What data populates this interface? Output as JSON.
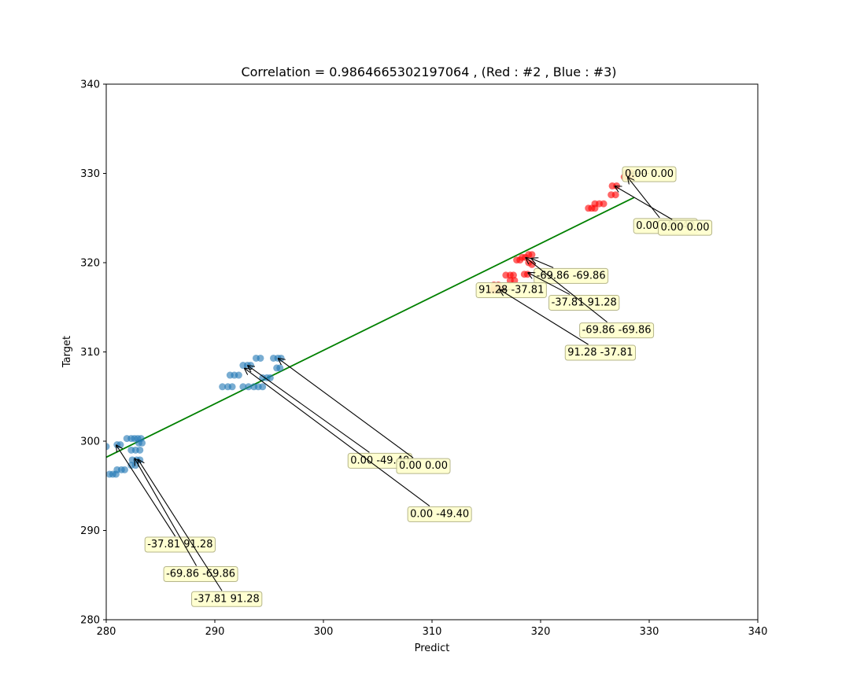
{
  "chart_data": {
    "type": "scatter",
    "title": "Correlation = 0.9864665302197064 ,  (Red : #2 , Blue : #3)",
    "xlabel": "Predict",
    "ylabel": "Target",
    "xlim": [
      280,
      340
    ],
    "ylim": [
      280,
      340
    ],
    "xticks": [
      280,
      290,
      300,
      310,
      320,
      330,
      340
    ],
    "yticks": [
      280,
      290,
      300,
      310,
      320,
      330,
      340
    ],
    "grid": false,
    "colors": {
      "blue": "#1f77b4",
      "red": "#ff0000",
      "fit_line": "#008000",
      "annotation_box": "#ffffcc",
      "annotation_edge": "#b5b58a"
    },
    "series": [
      {
        "color": "blue",
        "points": [
          [
            280.0,
            299.4
          ],
          [
            280.3,
            296.3
          ],
          [
            280.6,
            296.3
          ],
          [
            280.9,
            296.3
          ],
          [
            281.0,
            299.6
          ],
          [
            281.3,
            299.6
          ],
          [
            281.0,
            296.8
          ],
          [
            281.4,
            296.8
          ],
          [
            281.7,
            296.8
          ],
          [
            281.9,
            300.3
          ],
          [
            282.3,
            300.3
          ],
          [
            282.6,
            300.3
          ],
          [
            282.9,
            300.3
          ],
          [
            283.2,
            300.3
          ],
          [
            282.3,
            299.0
          ],
          [
            282.7,
            299.0
          ],
          [
            283.1,
            299.0
          ],
          [
            282.4,
            297.9
          ],
          [
            282.8,
            297.9
          ],
          [
            283.1,
            297.9
          ],
          [
            282.3,
            297.3
          ],
          [
            282.7,
            297.3
          ],
          [
            283.0,
            299.8
          ],
          [
            283.3,
            299.8
          ],
          [
            290.7,
            306.1
          ],
          [
            291.2,
            306.1
          ],
          [
            291.6,
            306.1
          ],
          [
            291.4,
            307.4
          ],
          [
            291.8,
            307.4
          ],
          [
            292.2,
            307.4
          ],
          [
            292.6,
            308.5
          ],
          [
            293.0,
            308.5
          ],
          [
            293.3,
            308.5
          ],
          [
            292.6,
            306.1
          ],
          [
            293.1,
            306.1
          ],
          [
            293.6,
            306.1
          ],
          [
            294.0,
            306.1
          ],
          [
            294.4,
            306.1
          ],
          [
            293.8,
            309.3
          ],
          [
            294.2,
            309.3
          ],
          [
            294.4,
            307.1
          ],
          [
            294.8,
            307.1
          ],
          [
            295.1,
            307.1
          ],
          [
            295.4,
            309.3
          ],
          [
            295.8,
            309.3
          ],
          [
            296.1,
            309.3
          ],
          [
            295.7,
            308.2
          ],
          [
            296.0,
            308.2
          ]
        ]
      },
      {
        "color": "red",
        "points": [
          [
            315.4,
            316.9
          ],
          [
            315.7,
            316.9
          ],
          [
            316.0,
            316.9
          ],
          [
            316.3,
            316.9
          ],
          [
            315.7,
            317.5
          ],
          [
            316.1,
            317.5
          ],
          [
            316.2,
            317.1
          ],
          [
            316.5,
            317.1
          ],
          [
            316.8,
            318.6
          ],
          [
            317.2,
            318.6
          ],
          [
            317.5,
            318.6
          ],
          [
            317.2,
            318.0
          ],
          [
            317.6,
            318.0
          ],
          [
            317.8,
            320.3
          ],
          [
            318.1,
            320.3
          ],
          [
            318.3,
            320.6
          ],
          [
            318.6,
            320.6
          ],
          [
            318.9,
            320.9
          ],
          [
            319.2,
            320.9
          ],
          [
            318.5,
            318.7
          ],
          [
            318.8,
            318.7
          ],
          [
            318.9,
            320.0
          ],
          [
            319.2,
            319.8
          ],
          [
            324.4,
            326.1
          ],
          [
            324.7,
            326.1
          ],
          [
            325.0,
            326.1
          ],
          [
            325.0,
            326.6
          ],
          [
            325.4,
            326.6
          ],
          [
            325.8,
            326.6
          ],
          [
            326.5,
            327.6
          ],
          [
            326.9,
            327.6
          ],
          [
            326.6,
            328.6
          ],
          [
            327.0,
            328.6
          ],
          [
            327.7,
            329.6
          ],
          [
            328.0,
            329.6
          ],
          [
            328.4,
            329.6
          ],
          [
            327.9,
            330.1
          ],
          [
            328.3,
            330.1
          ]
        ]
      }
    ],
    "fit_line": {
      "x": [
        280.0,
        328.6
      ],
      "y": [
        298.2,
        327.3
      ]
    },
    "annotations": [
      {
        "label": "0.00 0.00",
        "point": [
          328.3,
          330.0
        ],
        "text_at": [
          330.0,
          330.0
        ]
      },
      {
        "label": "0.00 -49.40",
        "point": [
          328.0,
          329.6
        ],
        "text_at": [
          331.5,
          324.2
        ]
      },
      {
        "label": "0.00 0.00",
        "point": [
          326.8,
          328.6
        ],
        "text_at": [
          333.3,
          324.0
        ]
      },
      {
        "label": "-69.86 -69.86",
        "point": [
          319.1,
          320.5
        ],
        "text_at": [
          322.8,
          318.6
        ]
      },
      {
        "label": "91.28 -37.81",
        "point": [
          315.9,
          316.9
        ],
        "text_at": [
          317.3,
          317.0
        ]
      },
      {
        "label": "-37.81 91.28",
        "point": [
          318.8,
          318.9
        ],
        "text_at": [
          324.0,
          315.6
        ]
      },
      {
        "label": "-69.86 -69.86",
        "point": [
          318.6,
          320.6
        ],
        "text_at": [
          327.0,
          312.5
        ]
      },
      {
        "label": "91.28 -37.81",
        "point": [
          316.2,
          317.0
        ],
        "text_at": [
          325.5,
          310.0
        ]
      },
      {
        "label": "0.00 -49.40",
        "point": [
          293.0,
          308.5
        ],
        "text_at": [
          305.2,
          297.9
        ]
      },
      {
        "label": "0.00 0.00",
        "point": [
          295.8,
          309.3
        ],
        "text_at": [
          309.2,
          297.3
        ]
      },
      {
        "label": "0.00 -49.40",
        "point": [
          292.7,
          308.2
        ],
        "text_at": [
          310.7,
          291.9
        ]
      },
      {
        "label": "-37.81 91.28",
        "point": [
          280.9,
          299.6
        ],
        "text_at": [
          286.8,
          288.5
        ]
      },
      {
        "label": "-69.86 -69.86",
        "point": [
          282.6,
          298.1
        ],
        "text_at": [
          288.7,
          285.2
        ]
      },
      {
        "label": "-37.81 91.28",
        "point": [
          282.9,
          298.0
        ],
        "text_at": [
          291.1,
          282.4
        ]
      }
    ]
  }
}
